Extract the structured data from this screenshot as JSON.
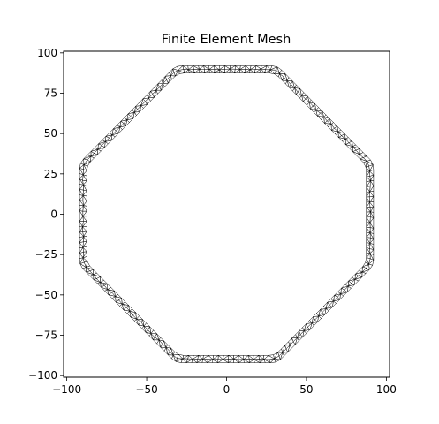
{
  "chart_data": {
    "type": "mesh",
    "title": "Finite Element Mesh",
    "xlabel": "",
    "ylabel": "",
    "xlim": [
      -102,
      102
    ],
    "ylim": [
      -101,
      101
    ],
    "xticks": [
      -100,
      -50,
      0,
      50,
      100
    ],
    "yticks": [
      -100,
      -75,
      -50,
      -25,
      0,
      25,
      50,
      75,
      100
    ],
    "xtick_labels": [
      "−100",
      "−50",
      "0",
      "50",
      "100"
    ],
    "ytick_labels": [
      "−100",
      "−75",
      "−50",
      "−25",
      "0",
      "25",
      "50",
      "75",
      "100"
    ],
    "geometry": {
      "shape": "octagonal ring with rounded corners",
      "outer_half_width": 92,
      "inner_half_width": 87.5,
      "flat_edge_half_length": 31,
      "corner_radius": 8
    },
    "grid": false,
    "edge_color": "#000000",
    "face_color": "#ffffff"
  }
}
